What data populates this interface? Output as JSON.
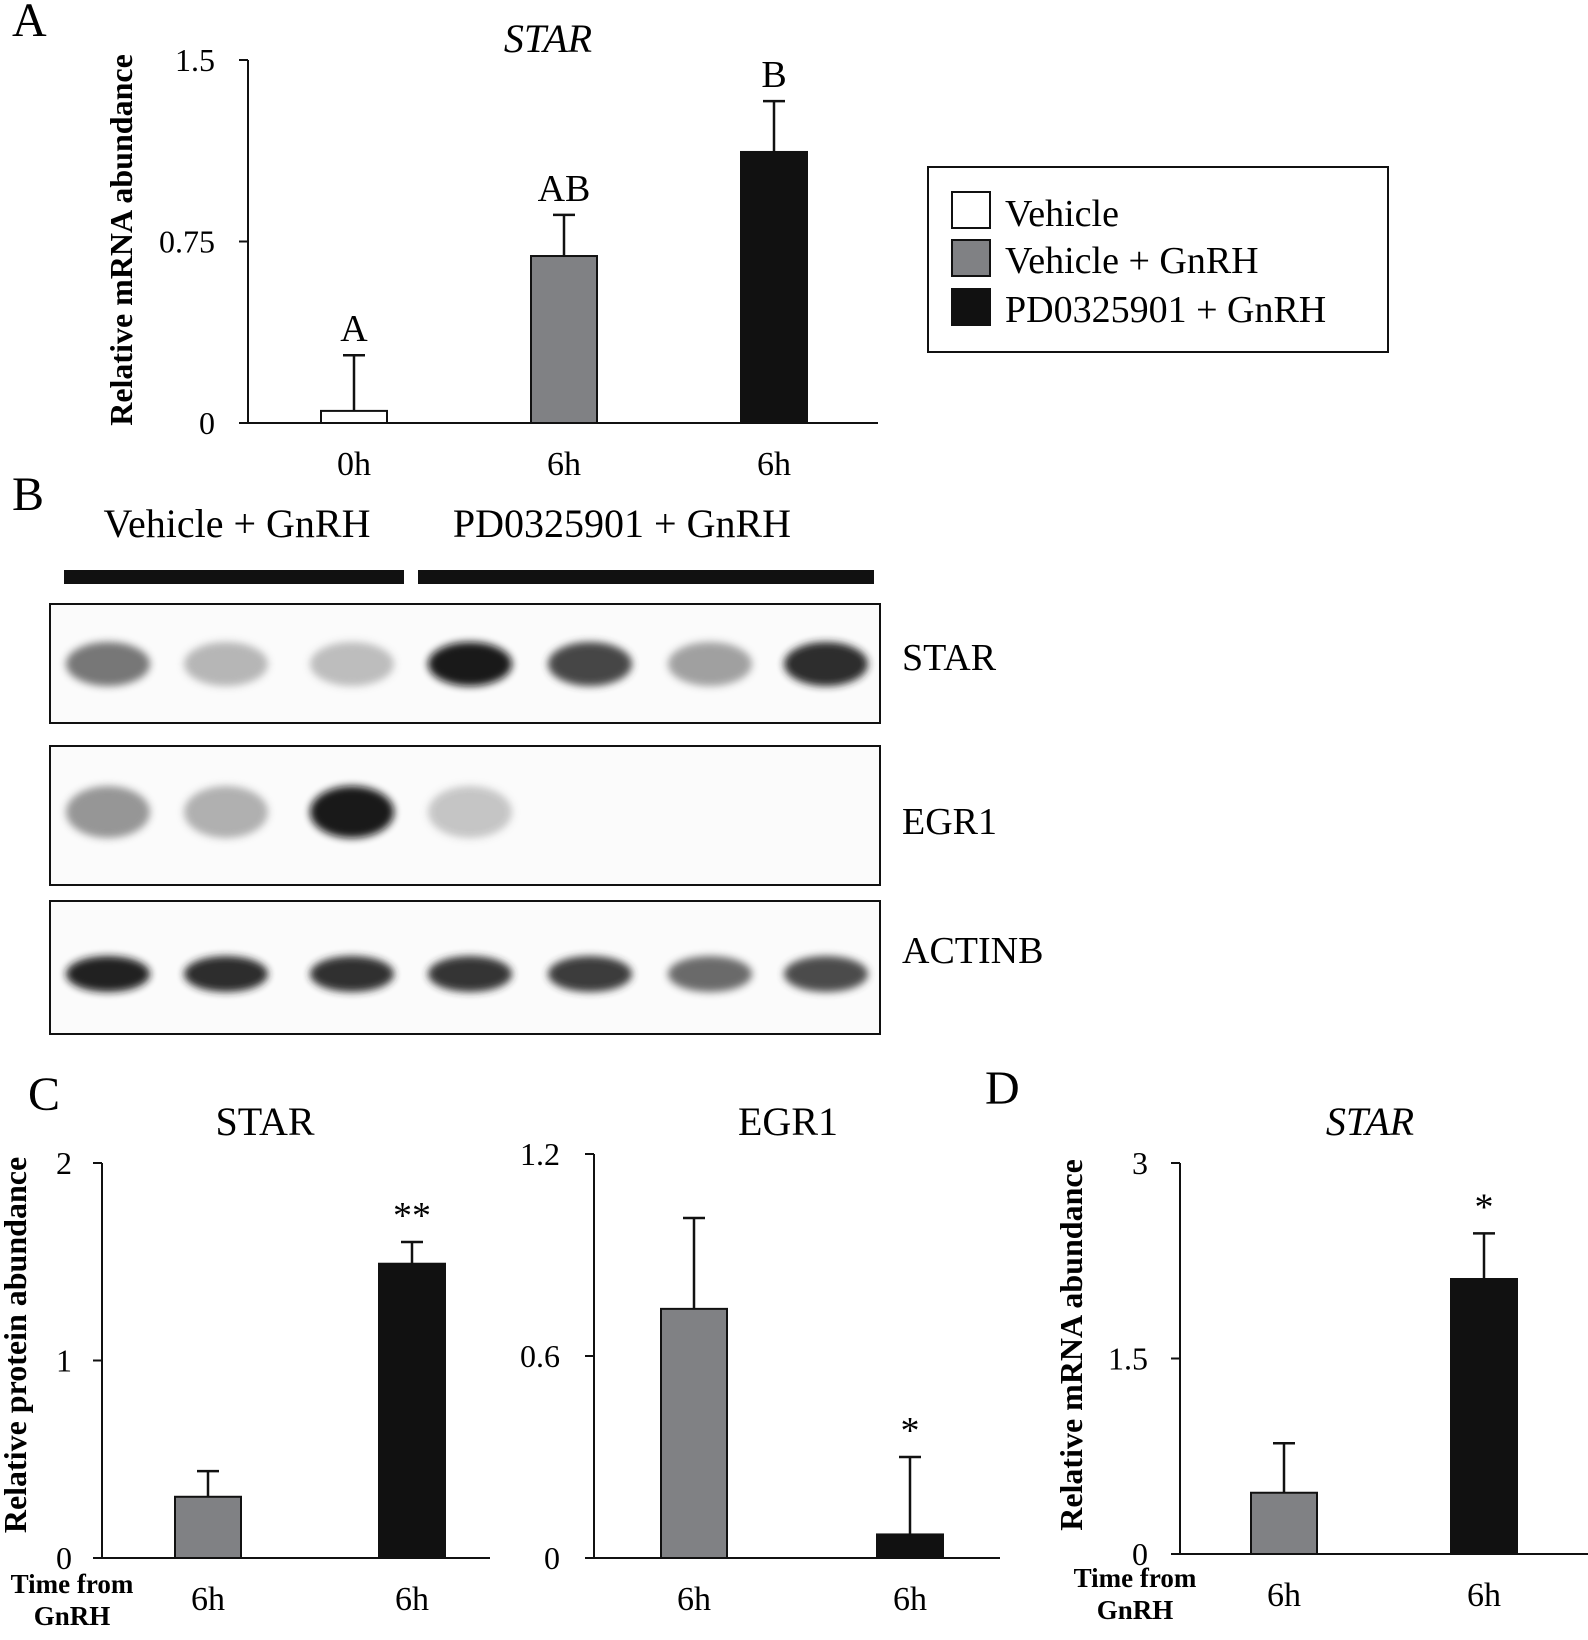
{
  "colors": {
    "Vehicle": "#ffffff",
    "Vehicle + GnRH": "#808184",
    "PD0325901 + GnRH": "#111111"
  },
  "panel_letters": {
    "A": "A",
    "B": "B",
    "C": "C",
    "D": "D"
  },
  "legend": [
    "Vehicle",
    "Vehicle + GnRH",
    "PD0325901 + GnRH"
  ],
  "blot": {
    "groups": [
      "Vehicle + GnRH",
      "PD0325901 + GnRH"
    ],
    "bands": [
      "STAR",
      "EGR1",
      "ACTINB"
    ],
    "lane_count": 7,
    "darkness": {
      "STAR": [
        0.55,
        0.25,
        0.22,
        0.98,
        0.78,
        0.35,
        0.9
      ],
      "EGR1": [
        0.4,
        0.28,
        1.0,
        0.18,
        0.0,
        0.0,
        0.0
      ],
      "ACTINB": [
        0.95,
        0.9,
        0.88,
        0.85,
        0.82,
        0.6,
        0.75
      ]
    }
  },
  "chart_data": [
    {
      "panel": "A",
      "type": "bar",
      "title": "STAR",
      "ylabel": "Relative mRNA abundance",
      "xlabel": "",
      "categories": [
        "0h",
        "6h",
        "6h"
      ],
      "groups": [
        "Vehicle",
        "Vehicle + GnRH",
        "PD0325901 + GnRH"
      ],
      "values": [
        0.05,
        0.69,
        1.12
      ],
      "errors": [
        0.23,
        0.17,
        0.21
      ],
      "sig_labels": [
        "A",
        "AB",
        "B"
      ],
      "ylim": [
        0,
        1.5
      ],
      "yticks": [
        "0",
        "0.75",
        "1.5"
      ],
      "legend_position": "right"
    },
    {
      "panel": "C",
      "type": "bar",
      "title": "STAR",
      "ylabel": "Relative protein abundance",
      "xlabel": "Time from GnRH",
      "categories": [
        "6h",
        "6h"
      ],
      "groups": [
        "Vehicle + GnRH",
        "PD0325901 + GnRH"
      ],
      "values": [
        0.31,
        1.49
      ],
      "errors": [
        0.13,
        0.11
      ],
      "sig_labels": [
        "",
        "**"
      ],
      "ylim": [
        0,
        2
      ],
      "yticks": [
        "0",
        "1",
        "2"
      ]
    },
    {
      "panel": "C",
      "type": "bar",
      "title": "EGR1",
      "ylabel": "",
      "xlabel": "",
      "categories": [
        "6h",
        "6h"
      ],
      "groups": [
        "Vehicle + GnRH",
        "PD0325901 + GnRH"
      ],
      "values": [
        0.74,
        0.07
      ],
      "errors": [
        0.27,
        0.23
      ],
      "sig_labels": [
        "",
        "*"
      ],
      "ylim": [
        0,
        1.2
      ],
      "yticks": [
        "0",
        "0.6",
        "1.2"
      ]
    },
    {
      "panel": "D",
      "type": "bar",
      "title": "STAR",
      "ylabel": "Relative mRNA abundance",
      "xlabel": "Time from GnRH",
      "categories": [
        "6h",
        "6h"
      ],
      "groups": [
        "Vehicle + GnRH",
        "PD0325901 + GnRH"
      ],
      "values": [
        0.47,
        2.11
      ],
      "errors": [
        0.38,
        0.35
      ],
      "sig_labels": [
        "",
        "*"
      ],
      "ylim": [
        0,
        3
      ],
      "yticks": [
        "0",
        "1.5",
        "3"
      ]
    }
  ]
}
